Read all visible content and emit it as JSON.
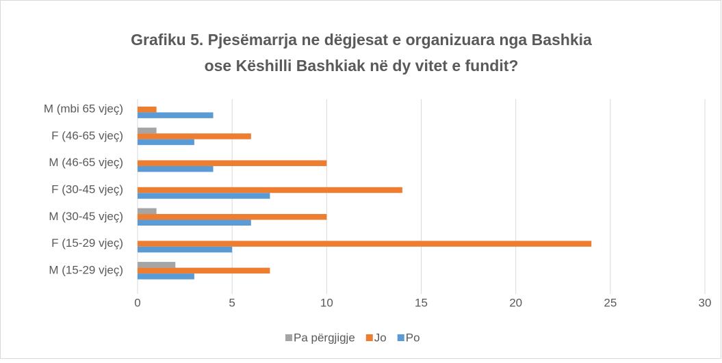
{
  "chart_data": {
    "type": "barh",
    "title": [
      "Grafiku 5. Pjesëmarrja ne dëgjesat e organizuara nga Bashkia",
      "ose Këshilli Bashkiak në dy vitet e fundit?"
    ],
    "categories": [
      "M (15-29 vjeç)",
      "F (15-29 vjeç)",
      "M (30-45 vjeç)",
      "F (30-45 vjeç)",
      "M (46-65 vjeç)",
      "F (46-65 vjeç)",
      "M (mbi 65 vjeç)"
    ],
    "series": [
      {
        "name": "Pa përgjigje",
        "color": "#a5a5a5",
        "values": [
          2,
          0,
          1,
          0,
          0,
          1,
          0
        ]
      },
      {
        "name": "Jo",
        "color": "#ed7d31",
        "values": [
          7,
          24,
          10,
          14,
          10,
          6,
          1
        ]
      },
      {
        "name": "Po",
        "color": "#5b9bd5",
        "values": [
          3,
          5,
          6,
          7,
          4,
          3,
          4
        ]
      }
    ],
    "xlim": [
      0,
      30
    ],
    "xticks": [
      0,
      5,
      10,
      15,
      20,
      25,
      30
    ],
    "grid": true,
    "legend": "bottom"
  }
}
